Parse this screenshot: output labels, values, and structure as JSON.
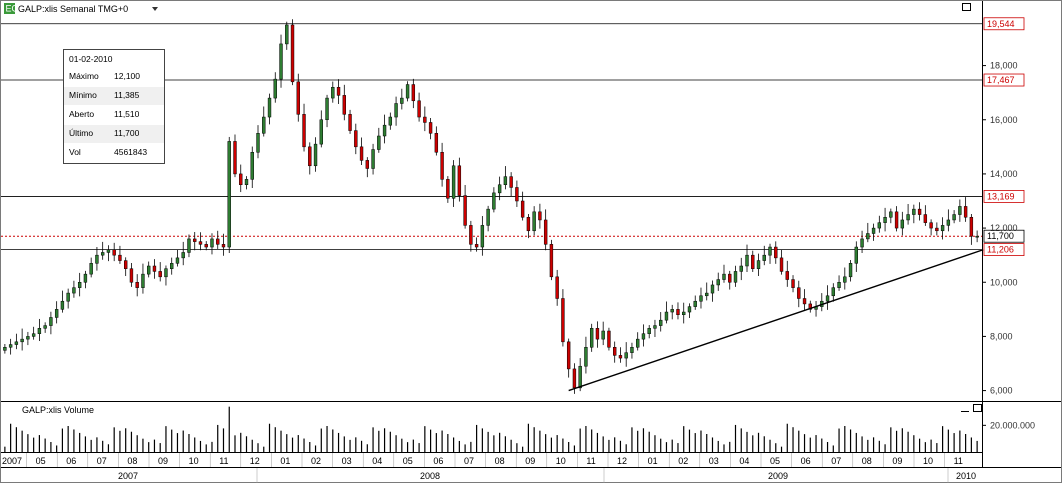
{
  "header": {
    "icon": "excel-icon",
    "icon_text": "EQ",
    "title": "GALP:xlis Semanal TMG+0",
    "dropdown_icon": "chevron-down-icon"
  },
  "volume_header": {
    "title": "GALP:xlis Volume"
  },
  "info_box": {
    "date": "01-02-2010",
    "rows": [
      {
        "label": "Máximo",
        "value": "12,100"
      },
      {
        "label": "Mínimo",
        "value": "11,385"
      },
      {
        "label": "Aberto",
        "value": "11,510"
      },
      {
        "label": "Último",
        "value": "11,700"
      },
      {
        "label": "Vol",
        "value": "4561843"
      }
    ]
  },
  "colors": {
    "up": "#2e7d32",
    "down": "#cc0000",
    "price_line": "#cc0000",
    "grid": "#000000"
  },
  "chart_data": [
    {
      "type": "candlestick",
      "title": "GALP:xlis Semanal TMG+0",
      "ylim": [
        5.8,
        20.2
      ],
      "y_ticks": [
        "18,000",
        "16,000",
        "14,000",
        "12,000",
        "10,000",
        "8,000",
        "6,000"
      ],
      "y_tick_values": [
        18,
        16,
        14,
        12,
        10,
        8,
        6
      ],
      "horizontal_levels": [
        {
          "value": 19.544,
          "label": "19,544"
        },
        {
          "value": 17.467,
          "label": "17,467"
        },
        {
          "value": 13.169,
          "label": "13,169"
        },
        {
          "value": 11.206,
          "label": "11,206"
        }
      ],
      "last_price": {
        "value": 11.7,
        "label": "11,700"
      },
      "trendline": {
        "from": {
          "date": "2008-10-20",
          "value": 6.0
        },
        "to": {
          "date": "2010-02-08",
          "value": 11.2
        }
      },
      "x_month_labels": [
        "2007",
        "05",
        "06",
        "07",
        "08",
        "09",
        "10",
        "11",
        "12",
        "01",
        "02",
        "03",
        "04",
        "05",
        "06",
        "07",
        "08",
        "09",
        "10",
        "11",
        "12",
        "01",
        "02",
        "03",
        "04",
        "05",
        "06",
        "07",
        "08",
        "09",
        "10",
        "11",
        "12",
        "01"
      ],
      "x_year_labels": [
        "2007",
        "2008",
        "2009",
        "2010"
      ],
      "closes": [
        7.6,
        7.7,
        7.8,
        7.9,
        8.0,
        8.1,
        8.3,
        8.4,
        8.7,
        9.0,
        9.3,
        9.6,
        9.8,
        10.0,
        10.3,
        10.7,
        11.0,
        11.1,
        11.2,
        11.0,
        10.8,
        10.5,
        10.0,
        9.8,
        10.3,
        10.6,
        10.4,
        10.2,
        10.5,
        10.7,
        10.9,
        11.1,
        11.6,
        11.5,
        11.4,
        11.3,
        11.6,
        11.4,
        11.3,
        15.2,
        14.0,
        13.6,
        13.8,
        14.8,
        15.5,
        16.1,
        16.8,
        17.5,
        18.8,
        19.5,
        17.4,
        16.2,
        15.0,
        14.3,
        15.1,
        16.0,
        16.8,
        17.2,
        16.9,
        16.2,
        15.6,
        15.0,
        14.5,
        14.2,
        14.9,
        15.4,
        15.8,
        16.1,
        16.6,
        16.8,
        17.3,
        16.7,
        16.1,
        15.9,
        15.5,
        14.8,
        13.8,
        13.1,
        14.3,
        13.2,
        12.1,
        11.4,
        11.3,
        12.1,
        12.7,
        13.3,
        13.6,
        13.9,
        13.5,
        13.0,
        12.4,
        11.9,
        12.6,
        12.3,
        11.4,
        10.2,
        9.4,
        7.8,
        6.8,
        6.1,
        6.9,
        7.6,
        8.3,
        7.9,
        8.2,
        7.6,
        7.3,
        7.2,
        7.4,
        7.6,
        7.9,
        8.1,
        8.3,
        8.4,
        8.6,
        8.9,
        9.0,
        8.8,
        8.9,
        9.1,
        9.3,
        9.5,
        9.6,
        9.9,
        10.1,
        10.3,
        10.0,
        10.4,
        10.6,
        11.0,
        10.5,
        10.8,
        11.0,
        11.3,
        10.9,
        10.4,
        10.1,
        9.8,
        9.4,
        9.2,
        9.0,
        9.1,
        9.3,
        9.5,
        9.8,
        10.0,
        10.2,
        10.7,
        11.3,
        11.6,
        11.8,
        12.0,
        12.2,
        12.4,
        12.6,
        12.0,
        12.3,
        12.5,
        12.7,
        12.5,
        12.2,
        12.0,
        11.9,
        12.1,
        12.3,
        12.5,
        12.8,
        12.4,
        11.7,
        11.7
      ],
      "volume_ylim": [
        0,
        36000000
      ],
      "volume_ticks": [
        {
          "value": 20000000,
          "label": "20.000.000"
        }
      ]
    }
  ]
}
